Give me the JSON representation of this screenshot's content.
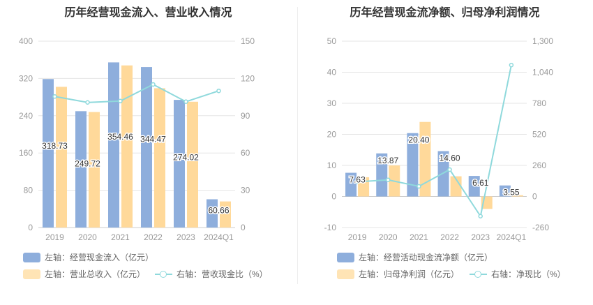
{
  "charts": [
    {
      "title": "历年经营现金流入、营业收入情况",
      "legend": {
        "bar1": "左轴：经营现金流入（亿元）",
        "bar2": "左轴：营业总收入（亿元）",
        "line": "右轴：营收现金比（%）"
      }
    },
    {
      "title": "历年经营现金流净额、归母净利润情况",
      "legend": {
        "bar1": "左轴：经营活动现金流净额（亿元）",
        "bar2": "左轴：归母净利润（亿元）",
        "line": "右轴：净现比（%）"
      }
    }
  ],
  "colors": {
    "bar1": "#8eaedc",
    "bar2": "#ffd99a",
    "line": "#8fd9dc",
    "grid": "#e6e6e6",
    "axis": "#999999"
  },
  "chart_data": [
    {
      "type": "bar",
      "title": "历年经营现金流入、营业收入情况",
      "categories": [
        "2019",
        "2020",
        "2021",
        "2022",
        "2023",
        "2024Q1"
      ],
      "left_ticks": [
        "0",
        "80",
        "160",
        "240",
        "320",
        "400"
      ],
      "right_ticks": [
        "0",
        "30",
        "60",
        "90",
        "120",
        "150"
      ],
      "ylim_left": [
        0,
        400
      ],
      "ylim_right": [
        0,
        150
      ],
      "series": [
        {
          "name": "左轴：经营现金流入（亿元）",
          "axis": "left",
          "type": "bar",
          "values": [
            318.73,
            249.72,
            354.46,
            344.47,
            274.02,
            60.66
          ],
          "labels": [
            "318.73",
            "249.72",
            "354.46",
            "344.47",
            "274.02",
            "60.66"
          ]
        },
        {
          "name": "左轴：营业总收入（亿元）",
          "axis": "left",
          "type": "bar",
          "values": [
            302,
            248,
            348,
            299,
            270,
            56
          ]
        },
        {
          "name": "右轴：营收现金比（%）",
          "axis": "right",
          "type": "line",
          "values": [
            105.5,
            100.7,
            101.8,
            115.2,
            101.3,
            110.0
          ]
        }
      ]
    },
    {
      "type": "bar",
      "title": "历年经营现金流净额、归母净利润情况",
      "categories": [
        "2019",
        "2020",
        "2021",
        "2022",
        "2023",
        "2024Q1"
      ],
      "left_ticks": [
        "-10",
        "0",
        "10",
        "20",
        "30",
        "40",
        "50"
      ],
      "right_ticks": [
        "-260",
        "0",
        "260",
        "520",
        "780",
        "1,040",
        "1,300"
      ],
      "ylim_left": [
        -10,
        50
      ],
      "ylim_right": [
        -260,
        1300
      ],
      "series": [
        {
          "name": "左轴：经营活动现金流净额（亿元）",
          "axis": "left",
          "type": "bar",
          "values": [
            7.63,
            13.87,
            20.4,
            14.6,
            6.61,
            3.55
          ],
          "labels": [
            "7.63",
            "13.87",
            "20.40",
            "14.60",
            "6.61",
            "3.55"
          ]
        },
        {
          "name": "左轴：归母净利润（亿元）",
          "axis": "left",
          "type": "bar",
          "values": [
            6.2,
            10.0,
            24.0,
            6.5,
            -4.0,
            0.4
          ]
        },
        {
          "name": "右轴：净现比（%）",
          "axis": "right",
          "type": "line",
          "values": [
            123,
            139,
            85,
            225,
            -165,
            1100
          ]
        }
      ]
    }
  ]
}
